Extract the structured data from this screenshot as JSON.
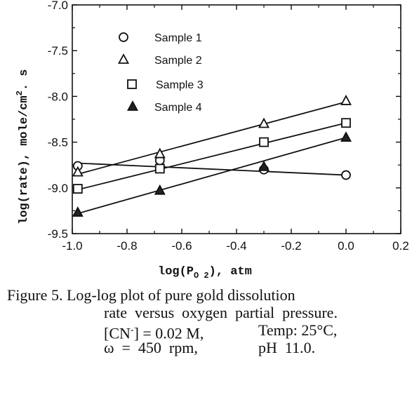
{
  "chart_data": {
    "type": "scatter",
    "xlabel": {
      "main": "log(P",
      "sub": "O 2",
      "tail": "),  atm"
    },
    "ylabel": {
      "main": "log(rate),    mole/cm",
      "sup": "2",
      "tail": ". s"
    },
    "xlim": [
      -1.0,
      0.2
    ],
    "ylim": [
      -9.5,
      -7.0
    ],
    "xticks": [
      -1.0,
      -0.8,
      -0.6,
      -0.4,
      -0.2,
      0.0,
      0.2
    ],
    "xtick_labels": [
      "-1.0",
      "-0.8",
      "-0.6",
      "-0.4",
      "-0.2",
      "0.0",
      "0.2"
    ],
    "yticks": [
      -7.0,
      -7.5,
      -8.0,
      -8.5,
      -9.0,
      -9.5
    ],
    "ytick_labels": [
      "-7.0",
      "-7.5",
      "-8.0",
      "-8.5",
      "-9.0",
      "-9.5"
    ],
    "grid": false,
    "legend_position": "top-left",
    "series": [
      {
        "name": "Sample 1",
        "marker": "circle-open",
        "x": [
          -0.98,
          -0.68,
          -0.3,
          0.0
        ],
        "y": [
          -8.76,
          -8.7,
          -8.8,
          -8.86
        ],
        "fit": [
          [
            -0.98,
            -8.73
          ],
          [
            0.0,
            -8.86
          ]
        ]
      },
      {
        "name": "Sample 2",
        "marker": "triangle-open",
        "x": [
          -0.98,
          -0.68,
          -0.3,
          0.0
        ],
        "y": [
          -8.83,
          -8.63,
          -8.3,
          -8.05
        ],
        "fit": [
          [
            -0.98,
            -8.85
          ],
          [
            0.0,
            -8.06
          ]
        ]
      },
      {
        "name": "Sample 3",
        "marker": "square-open",
        "x": [
          -0.98,
          -0.68,
          -0.3,
          0.0
        ],
        "y": [
          -9.01,
          -8.79,
          -8.5,
          -8.29
        ],
        "fit": [
          [
            -0.98,
            -9.02
          ],
          [
            0.0,
            -8.29
          ]
        ]
      },
      {
        "name": "Sample 4",
        "marker": "triangle-filled",
        "x": [
          -0.98,
          -0.68,
          -0.3,
          0.0
        ],
        "y": [
          -9.27,
          -9.03,
          -8.77,
          -8.45
        ],
        "fit": [
          [
            -0.98,
            -9.28
          ],
          [
            0.0,
            -8.45
          ]
        ]
      }
    ]
  },
  "caption": {
    "line1": "Figure 5. Log-log plot of pure gold dissolution",
    "line2": "rate  versus  oxygen  partial  pressure.",
    "line3a_pre": "[CN",
    "line3a_sup": "-",
    "line3a_post": "] = 0.02 M,",
    "line3b": "Temp: 25°C,",
    "line4a": "ω  =  450  rpm,",
    "line4b": "pH  11.0."
  }
}
